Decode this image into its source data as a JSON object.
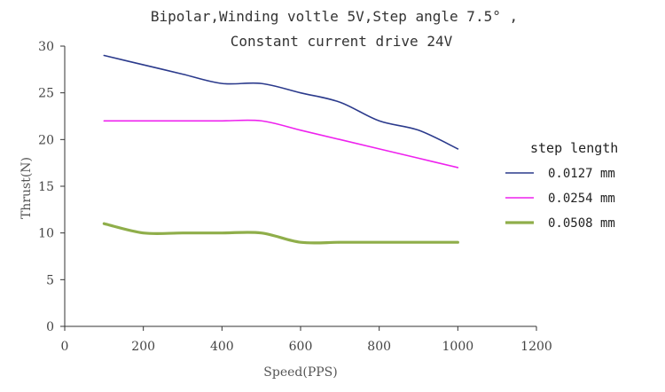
{
  "chart_data": {
    "type": "line",
    "title_lines": [
      "Bipolar,Winding voltle 5V,Step angle 7.5° ,",
      "Constant current drive 24V"
    ],
    "xlabel": "Speed(PPS)",
    "ylabel": "Thrust(N)",
    "xlim": [
      0,
      1200
    ],
    "ylim": [
      0,
      30
    ],
    "xticks": [
      0,
      200,
      400,
      600,
      800,
      1000,
      1200
    ],
    "yticks": [
      0,
      5,
      10,
      15,
      20,
      25,
      30
    ],
    "grid": false,
    "legend": {
      "title": "step length",
      "placement": "right"
    },
    "series": [
      {
        "name": "0.0127 mm",
        "color": "#2b3a8c",
        "x": [
          100,
          200,
          300,
          400,
          500,
          600,
          700,
          800,
          900,
          1000
        ],
        "y": [
          29,
          28,
          27,
          26,
          26,
          25,
          24,
          22,
          21,
          19
        ]
      },
      {
        "name": "0.0254 mm",
        "color": "#ee22ee",
        "x": [
          100,
          200,
          300,
          400,
          500,
          600,
          700,
          800,
          900,
          1000
        ],
        "y": [
          22,
          22,
          22,
          22,
          22,
          21,
          20,
          19,
          18,
          17
        ]
      },
      {
        "name": "0.0508 mm",
        "color": "#8fae4a",
        "x": [
          100,
          200,
          300,
          400,
          500,
          600,
          700,
          800,
          900,
          1000
        ],
        "y": [
          11,
          10,
          10,
          10,
          10,
          9,
          9,
          9,
          9,
          9
        ]
      }
    ]
  }
}
